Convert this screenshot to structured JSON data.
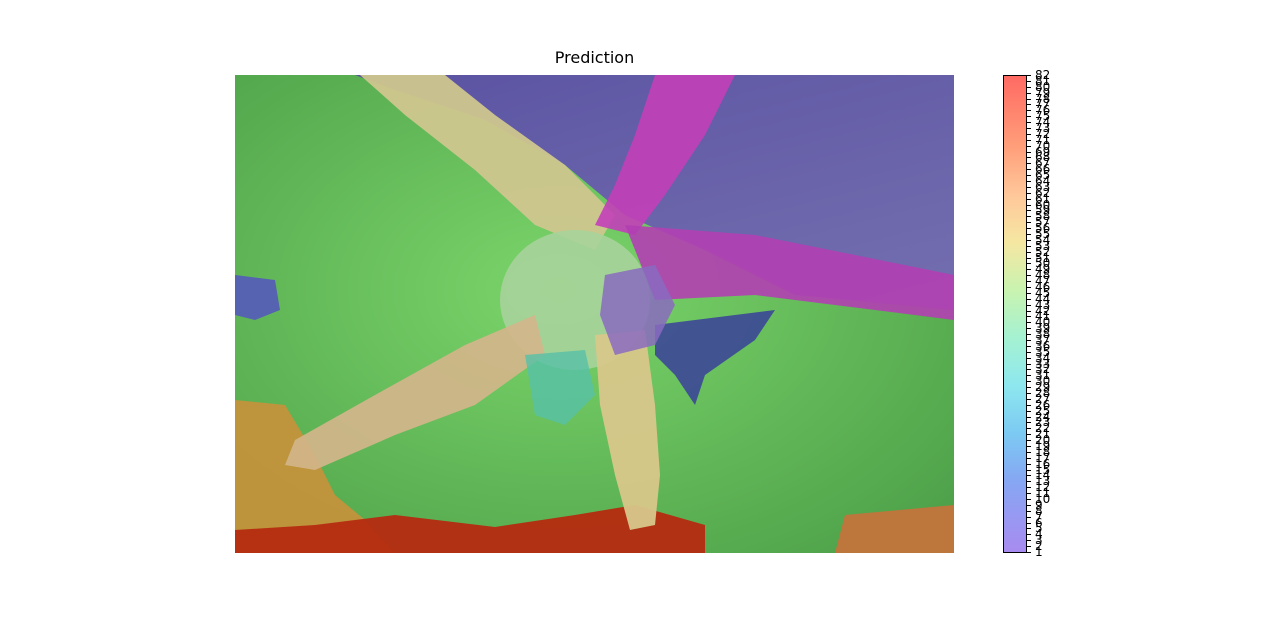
{
  "chart_data": {
    "type": "heatmap",
    "title": "Prediction",
    "colormap": "rainbow",
    "overlay_alpha": 0.6,
    "colorbar": {
      "min": 1,
      "max": 82,
      "tick_labels": [
        "82",
        "81",
        "80",
        "79",
        "78",
        "77",
        "76",
        "75",
        "74",
        "73",
        "72",
        "71",
        "70",
        "69",
        "68",
        "67",
        "66",
        "65",
        "64",
        "63",
        "62",
        "61",
        "60",
        "59",
        "58",
        "57",
        "56",
        "55",
        "54",
        "53",
        "52",
        "51",
        "50",
        "49",
        "48",
        "47",
        "46",
        "45",
        "44",
        "43",
        "42",
        "41",
        "40",
        "39",
        "38",
        "37",
        "36",
        "35",
        "34",
        "33",
        "32",
        "31",
        "30",
        "29",
        "28",
        "27",
        "26",
        "25",
        "24",
        "23",
        "22",
        "21",
        "20",
        "19",
        "18",
        "17",
        "16",
        "15",
        "14",
        "13",
        "12",
        "11",
        "10",
        "9",
        "8",
        "7",
        "6",
        "5",
        "4",
        "3",
        "2",
        "1"
      ]
    },
    "regions": [
      {
        "name": "background-seafloor",
        "label": 48,
        "color": "#6fcf5a"
      },
      {
        "name": "upper-right-rock",
        "label": 5,
        "color": "#6a55b0"
      },
      {
        "name": "starfish-arms-right",
        "label": 76,
        "color": "#c23fb8"
      },
      {
        "name": "starfish-arm-lower",
        "label": 57,
        "color": "#d8c78a"
      },
      {
        "name": "starfish-center",
        "label": 44,
        "color": "#a7d39a"
      },
      {
        "name": "bottom-coral",
        "label": 82,
        "color": "#b52a10"
      },
      {
        "name": "lower-left-coral",
        "label": 64,
        "color": "#c9913a"
      },
      {
        "name": "shadow-region",
        "label": 7,
        "color": "#3a3f9a"
      }
    ]
  }
}
